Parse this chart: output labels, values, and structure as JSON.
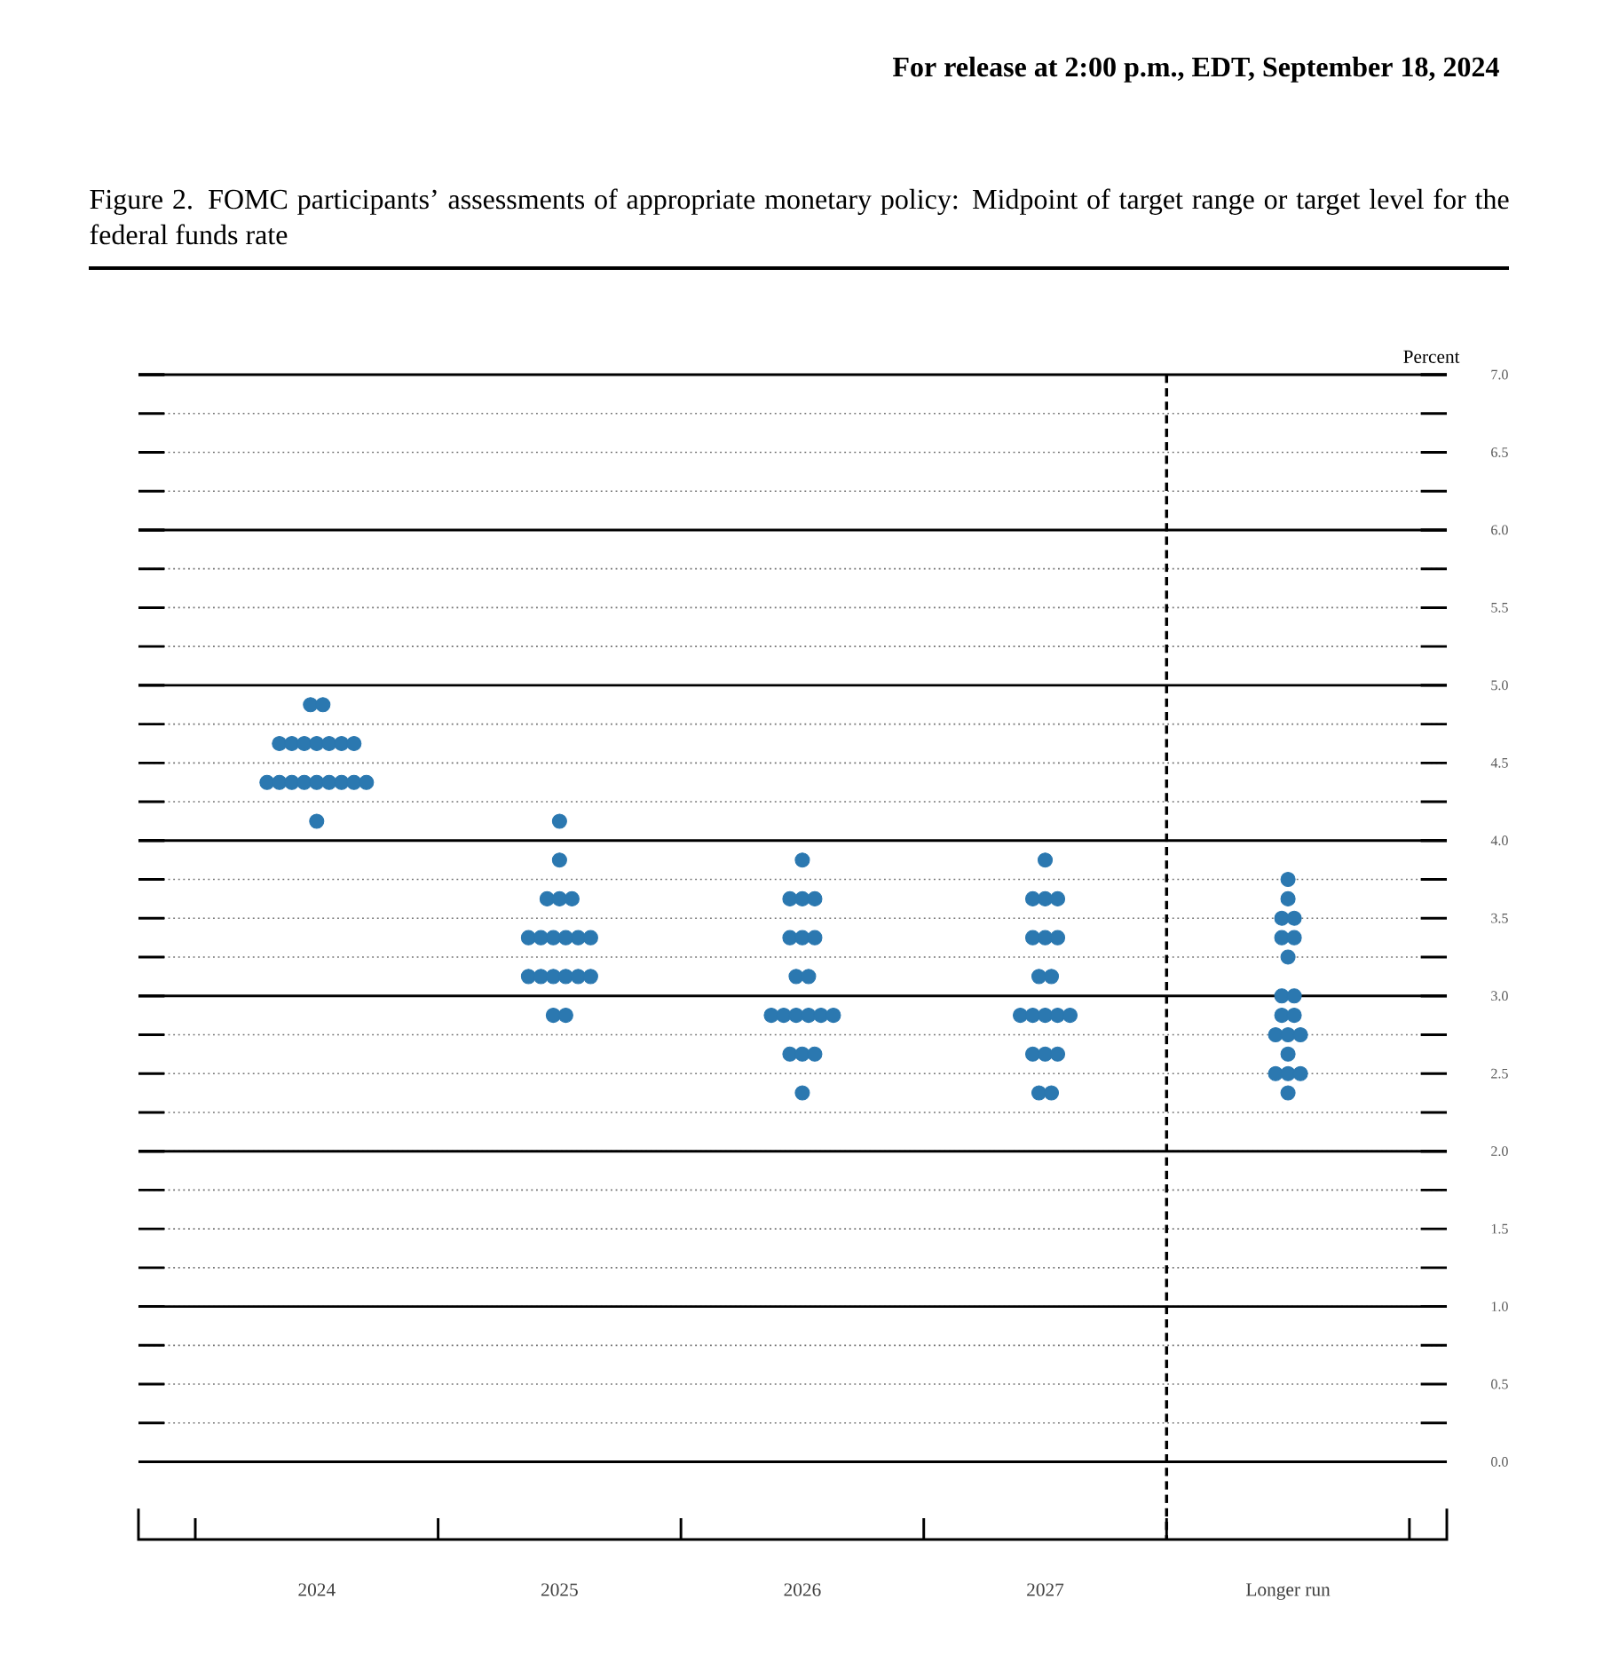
{
  "chart_data": {
    "type": "scatter",
    "title": "Figure 2. FOMC participants’ assessments of appropriate monetary policy: Midpoint of target range or target level for the federal funds rate",
    "annotations": [
      "For release at 2:00 p.m., EDT, September 18, 2024"
    ],
    "ylabel": "Percent",
    "categories": [
      "2024",
      "2025",
      "2026",
      "2027",
      "Longer run"
    ],
    "series": [
      {
        "color": "#2b78b0",
        "values": [
          4.875,
          4.125,
          3.875,
          3.875,
          3.75
        ]
      },
      {
        "color": "#2b78b0",
        "values": [
          4.875,
          3.875,
          3.625,
          3.625,
          3.625
        ]
      },
      {
        "color": "#2b78b0",
        "values": [
          4.625,
          3.625,
          3.625,
          3.625,
          3.5
        ]
      },
      {
        "color": "#2b78b0",
        "values": [
          4.625,
          3.625,
          3.625,
          3.625,
          3.5
        ]
      },
      {
        "color": "#2b78b0",
        "values": [
          4.625,
          3.625,
          3.375,
          3.375,
          3.375
        ]
      },
      {
        "color": "#2b78b0",
        "values": [
          4.625,
          3.375,
          3.375,
          3.375,
          3.375
        ]
      },
      {
        "color": "#2b78b0",
        "values": [
          4.625,
          3.375,
          3.375,
          3.375,
          3.25
        ]
      },
      {
        "color": "#2b78b0",
        "values": [
          4.625,
          3.375,
          3.125,
          3.125,
          3.0
        ]
      },
      {
        "color": "#2b78b0",
        "values": [
          4.625,
          3.375,
          3.125,
          3.125,
          3.0
        ]
      },
      {
        "color": "#2b78b0",
        "values": [
          4.375,
          3.375,
          2.875,
          2.875,
          2.875
        ]
      },
      {
        "color": "#2b78b0",
        "values": [
          4.375,
          3.375,
          2.875,
          2.875,
          2.875
        ]
      },
      {
        "color": "#2b78b0",
        "values": [
          4.375,
          3.125,
          2.875,
          2.875,
          2.75
        ]
      },
      {
        "color": "#2b78b0",
        "values": [
          4.375,
          3.125,
          2.875,
          2.875,
          2.75
        ]
      },
      {
        "color": "#2b78b0",
        "values": [
          4.375,
          3.125,
          2.875,
          2.875,
          2.75
        ]
      },
      {
        "color": "#2b78b0",
        "values": [
          4.375,
          3.125,
          2.875,
          2.625,
          2.625
        ]
      },
      {
        "color": "#2b78b0",
        "values": [
          4.375,
          3.125,
          2.625,
          2.625,
          2.5
        ]
      },
      {
        "color": "#2b78b0",
        "values": [
          4.375,
          3.125,
          2.625,
          2.625,
          2.5
        ]
      },
      {
        "color": "#2b78b0",
        "values": [
          4.375,
          2.875,
          2.625,
          2.375,
          2.5
        ]
      },
      {
        "color": "#2b78b0",
        "values": [
          4.125,
          2.875,
          2.375,
          2.375,
          2.375
        ]
      }
    ],
    "ylim": [
      -0.5,
      7
    ],
    "yticks": [
      {
        "value": 0,
        "label": "0.0"
      },
      {
        "value": 0.25,
        "label": null
      },
      {
        "value": 0.5,
        "label": "0.5"
      },
      {
        "value": 0.75,
        "label": null
      },
      {
        "value": 1,
        "label": "1.0"
      },
      {
        "value": 1.25,
        "label": null
      },
      {
        "value": 1.5,
        "label": "1.5"
      },
      {
        "value": 1.75,
        "label": null
      },
      {
        "value": 2,
        "label": "2.0"
      },
      {
        "value": 2.25,
        "label": null
      },
      {
        "value": 2.5,
        "label": "2.5"
      },
      {
        "value": 2.75,
        "label": null
      },
      {
        "value": 3,
        "label": "3.0"
      },
      {
        "value": 3.25,
        "label": null
      },
      {
        "value": 3.5,
        "label": "3.5"
      },
      {
        "value": 3.75,
        "label": null
      },
      {
        "value": 4,
        "label": "4.0"
      },
      {
        "value": 4.25,
        "label": null
      },
      {
        "value": 4.5,
        "label": "4.5"
      },
      {
        "value": 4.75,
        "label": null
      },
      {
        "value": 5,
        "label": "5.0"
      },
      {
        "value": 5.25,
        "label": null
      },
      {
        "value": 5.5,
        "label": "5.5"
      },
      {
        "value": 5.75,
        "label": null
      },
      {
        "value": 6,
        "label": "6.0"
      },
      {
        "value": 6.25,
        "label": null
      },
      {
        "value": 6.5,
        "label": "6.5"
      },
      {
        "value": 6.75,
        "label": null
      },
      {
        "value": 7,
        "label": "7.0"
      }
    ],
    "grid": "y",
    "marker": "circle"
  }
}
